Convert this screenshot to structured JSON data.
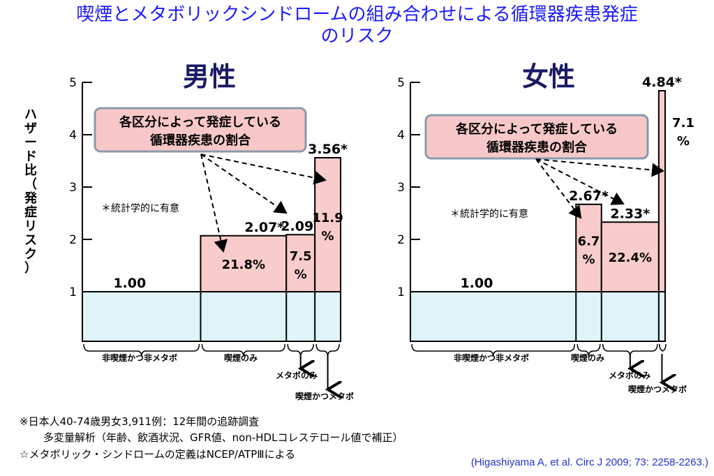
{
  "title_line1": "喫煙とメタボリックシンドロームの組み合わせによる循環器疾患発症",
  "title_line2": "のリスク",
  "ylabel": "ハザード比（発症リスク）",
  "annotation_box": [
    "各区分によって発症している",
    "循環器疾患の割合"
  ],
  "significance_note": "＊統計学的に有意",
  "chart_data": [
    {
      "type": "bar",
      "title": "男性",
      "ylabel": "ハザード比（発症リスク）",
      "ylim": [
        0,
        5
      ],
      "yticks": [
        1,
        2,
        3,
        4,
        5
      ],
      "baseline": 1,
      "categories": [
        "非喫煙かつ非メタボ",
        "喫煙のみ",
        "メタボのみ",
        "喫煙かつメタボ"
      ],
      "hazard_ratios": [
        1.0,
        2.07,
        2.09,
        3.56
      ],
      "hazard_labels": [
        "1.00",
        "2.07*",
        "2.09*",
        "3.56*"
      ],
      "significant": [
        false,
        true,
        true,
        true
      ],
      "proportion_of_cases": [
        "",
        "21.8%",
        "7.5%",
        "11.9%"
      ],
      "relative_widths": [
        2.07,
        1.5,
        0.5,
        0.45
      ]
    },
    {
      "type": "bar",
      "title": "女性",
      "ylabel": "ハザード比（発症リスク）",
      "ylim": [
        0,
        5
      ],
      "yticks": [
        1,
        2,
        3,
        4,
        5
      ],
      "baseline": 1,
      "categories": [
        "非喫煙かつ非メタボ",
        "喫煙のみ",
        "メタボのみ",
        "喫煙かつメタボ"
      ],
      "hazard_ratios": [
        1.0,
        2.67,
        2.33,
        4.84
      ],
      "hazard_labels": [
        "1.00",
        "2.67*",
        "2.33*",
        "4.84*"
      ],
      "significant": [
        false,
        true,
        true,
        true
      ],
      "proportion_of_cases": [
        "",
        "6.7%",
        "22.4%",
        "7.1%"
      ],
      "relative_widths": [
        2.6,
        0.4,
        0.9,
        0.1
      ]
    }
  ],
  "colors": {
    "baseline_fill": "#dff3f8",
    "excess_fill": "#f9cccc",
    "box_fill": "#f8c8c8",
    "box_border": "#8a9aac",
    "title_color": "#1a1aff",
    "axis_title_color": "#1a1a66",
    "citation_color": "#2233cc"
  },
  "footnotes": [
    "※日本人40-74歳男女3,911例：12年間の追跡調査",
    "多変量解析（年齢、飲酒状況、GFR値、non-HDLコレステロール値で補正）",
    "☆メタボリック・シンドロームの定義はNCEP/ATPⅢによる"
  ],
  "citation": "(Higashiyama A, et al. Circ J 2009; 73: 2258-2263.)"
}
